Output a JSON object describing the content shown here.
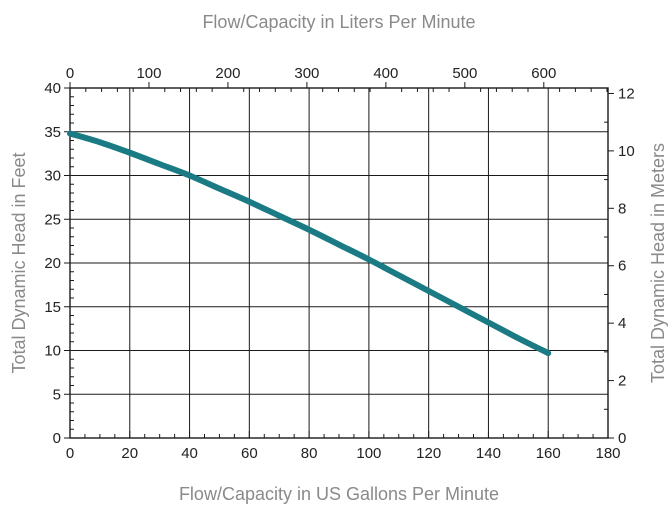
{
  "chart_data": {
    "type": "line",
    "xlabel": "Flow/Capacity in US Gallons Per Minute",
    "ylabel": "Total Dynamic Head in Feet",
    "x2label": "Flow/Capacity in Liters Per Minute",
    "y2label": "Total Dynamic Head in Meters",
    "xlim": [
      0,
      180
    ],
    "ylim": [
      0,
      40
    ],
    "x2lim": [
      0,
      681.3
    ],
    "y2lim": [
      0,
      12.19
    ],
    "x_ticks": [
      "0",
      "20",
      "40",
      "60",
      "80",
      "100",
      "120",
      "140",
      "160",
      "180"
    ],
    "y_ticks": [
      "0",
      "5",
      "10",
      "15",
      "20",
      "25",
      "30",
      "35",
      "40"
    ],
    "x2_ticks": [
      "0",
      "100",
      "200",
      "300",
      "400",
      "500",
      "600"
    ],
    "y2_ticks": [
      "0",
      "2",
      "4",
      "6",
      "8",
      "10",
      "12"
    ],
    "grid": true,
    "series": [
      {
        "color": "#1a7b84",
        "x": [
          0,
          10,
          20,
          30,
          40,
          50,
          60,
          70,
          80,
          90,
          100,
          110,
          120,
          130,
          140,
          150,
          160
        ],
        "y": [
          34.8,
          33.8,
          32.6,
          31.3,
          30.0,
          28.5,
          27.0,
          25.4,
          23.8,
          22.1,
          20.4,
          18.6,
          16.8,
          15.0,
          13.2,
          11.4,
          9.7
        ]
      }
    ]
  }
}
